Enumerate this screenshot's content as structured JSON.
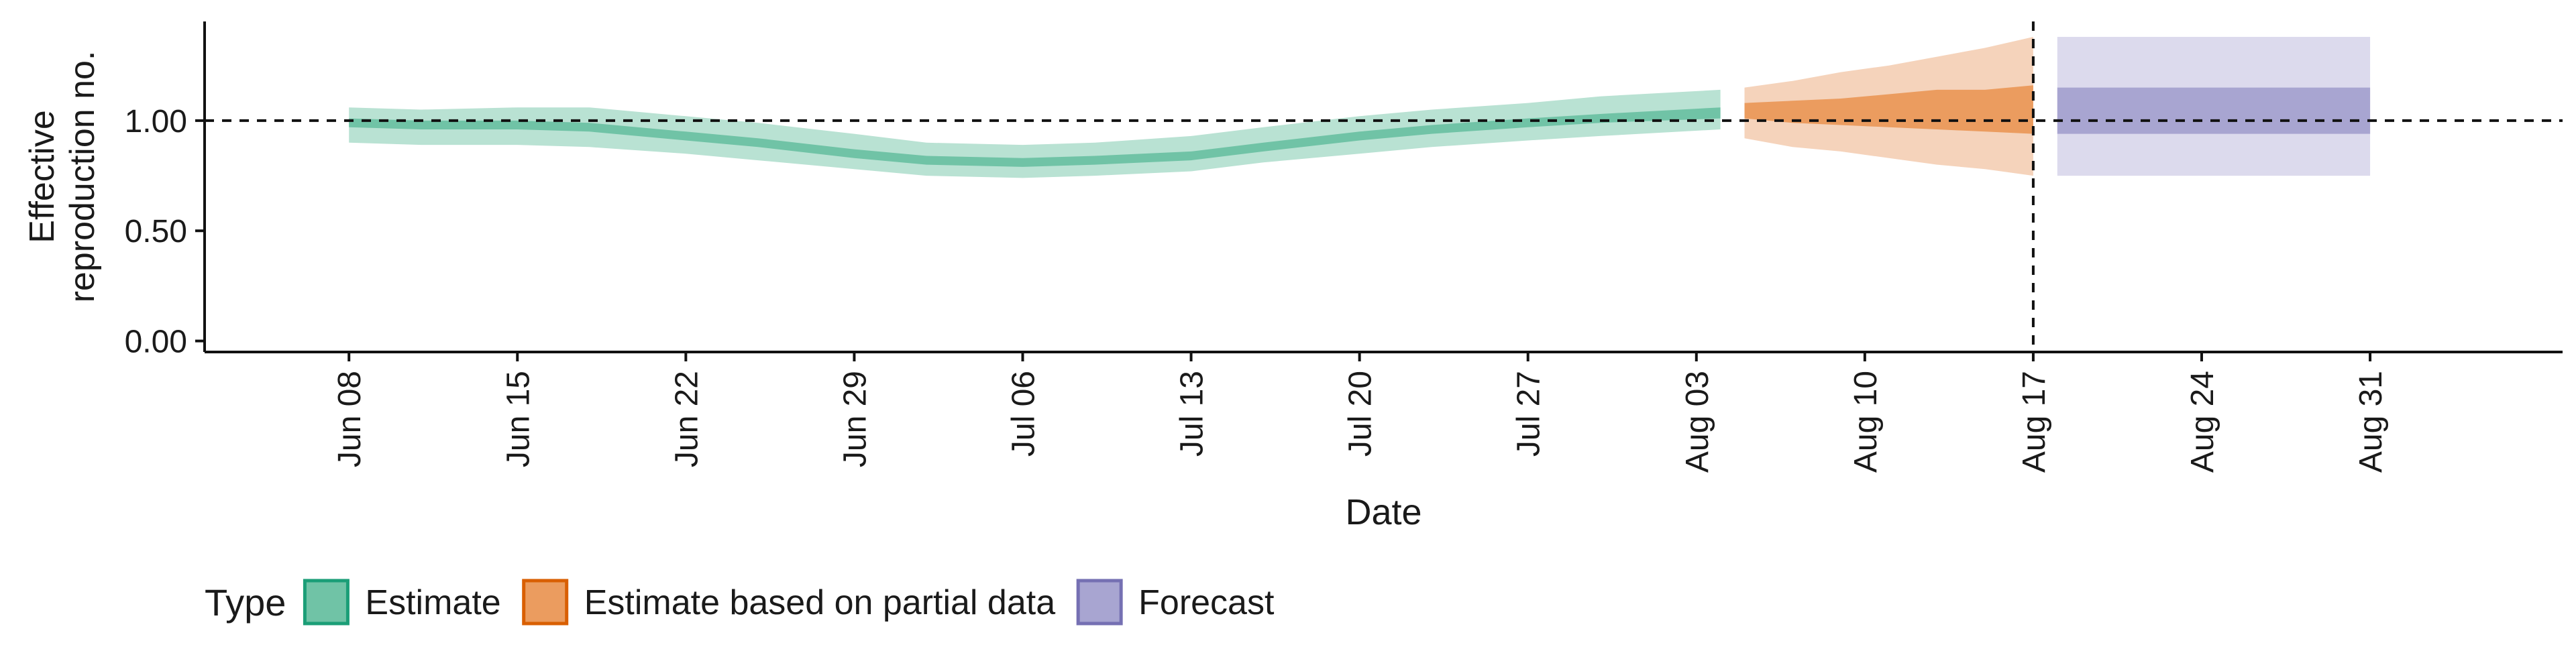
{
  "chart_data": {
    "type": "area",
    "title": "",
    "xlabel": "Date",
    "ylabel": "Effective reproduction no.",
    "ylabel_lines": [
      "Effective",
      "reproduction no."
    ],
    "x_type": "date",
    "xlim": [
      "2020-06-02",
      "2020-09-08"
    ],
    "ylim": [
      -0.05,
      1.45
    ],
    "y_ticks": [
      {
        "value": 0.0,
        "label": "0.00"
      },
      {
        "value": 0.5,
        "label": "0.50"
      },
      {
        "value": 1.0,
        "label": "1.00"
      }
    ],
    "x_ticks": [
      {
        "date": "2020-06-08",
        "label": "Jun 08"
      },
      {
        "date": "2020-06-15",
        "label": "Jun 15"
      },
      {
        "date": "2020-06-22",
        "label": "Jun 22"
      },
      {
        "date": "2020-06-29",
        "label": "Jun 29"
      },
      {
        "date": "2020-07-06",
        "label": "Jul 06"
      },
      {
        "date": "2020-07-13",
        "label": "Jul 13"
      },
      {
        "date": "2020-07-20",
        "label": "Jul 20"
      },
      {
        "date": "2020-07-27",
        "label": "Jul 27"
      },
      {
        "date": "2020-08-03",
        "label": "Aug 03"
      },
      {
        "date": "2020-08-10",
        "label": "Aug 10"
      },
      {
        "date": "2020-08-17",
        "label": "Aug 17"
      },
      {
        "date": "2020-08-24",
        "label": "Aug 24"
      },
      {
        "date": "2020-08-31",
        "label": "Aug 31"
      }
    ],
    "reference_lines": {
      "horizontal_y": 1.0,
      "vertical_date": "2020-08-17"
    },
    "grid": false,
    "legend": {
      "title": "Type",
      "position": "bottom-left",
      "items": [
        {
          "label": "Estimate",
          "fill": "#70c3a6",
          "border": "#1b9e77"
        },
        {
          "label": "Estimate based on partial data",
          "fill": "#eb9c5f",
          "border": "#d95f02"
        },
        {
          "label": "Forecast",
          "fill": "#a8a5d1",
          "border": "#7570b3"
        }
      ]
    },
    "series": [
      {
        "name": "Estimate",
        "colors": {
          "outer": "#b9e2d3",
          "inner": "#70c3a6"
        },
        "x": [
          "2020-06-08",
          "2020-06-11",
          "2020-06-15",
          "2020-06-18",
          "2020-06-22",
          "2020-06-25",
          "2020-06-29",
          "2020-07-02",
          "2020-07-06",
          "2020-07-09",
          "2020-07-13",
          "2020-07-16",
          "2020-07-20",
          "2020-07-23",
          "2020-07-27",
          "2020-07-30",
          "2020-08-04"
        ],
        "outer_lower": [
          0.9,
          0.89,
          0.89,
          0.88,
          0.85,
          0.82,
          0.78,
          0.75,
          0.74,
          0.75,
          0.77,
          0.81,
          0.85,
          0.88,
          0.91,
          0.93,
          0.96
        ],
        "inner_lower": [
          0.97,
          0.96,
          0.96,
          0.95,
          0.91,
          0.88,
          0.83,
          0.8,
          0.79,
          0.8,
          0.82,
          0.86,
          0.91,
          0.94,
          0.97,
          0.99,
          1.01
        ],
        "inner_upper": [
          1.01,
          1.0,
          1.0,
          0.99,
          0.95,
          0.92,
          0.87,
          0.84,
          0.83,
          0.84,
          0.86,
          0.9,
          0.95,
          0.98,
          1.01,
          1.03,
          1.06
        ],
        "outer_upper": [
          1.06,
          1.05,
          1.06,
          1.06,
          1.02,
          0.99,
          0.94,
          0.9,
          0.89,
          0.9,
          0.93,
          0.97,
          1.02,
          1.05,
          1.08,
          1.11,
          1.14
        ]
      },
      {
        "name": "Estimate based on partial data",
        "colors": {
          "outer": "#f5d3bb",
          "inner": "#eb9c5f"
        },
        "x": [
          "2020-08-05",
          "2020-08-07",
          "2020-08-09",
          "2020-08-11",
          "2020-08-13",
          "2020-08-15",
          "2020-08-17"
        ],
        "outer_lower": [
          0.92,
          0.88,
          0.86,
          0.83,
          0.8,
          0.78,
          0.75
        ],
        "inner_lower": [
          1.01,
          0.99,
          0.98,
          0.97,
          0.96,
          0.95,
          0.94
        ],
        "inner_upper": [
          1.08,
          1.09,
          1.1,
          1.12,
          1.14,
          1.14,
          1.16
        ],
        "outer_upper": [
          1.15,
          1.18,
          1.22,
          1.25,
          1.29,
          1.33,
          1.38
        ]
      },
      {
        "name": "Forecast",
        "colors": {
          "outer": "#dcdaed",
          "inner": "#a8a5d1"
        },
        "x": [
          "2020-08-18",
          "2020-08-31"
        ],
        "outer_lower": [
          0.75,
          0.75
        ],
        "inner_lower": [
          0.94,
          0.94
        ],
        "inner_upper": [
          1.15,
          1.15
        ],
        "outer_upper": [
          1.38,
          1.38
        ]
      }
    ]
  }
}
